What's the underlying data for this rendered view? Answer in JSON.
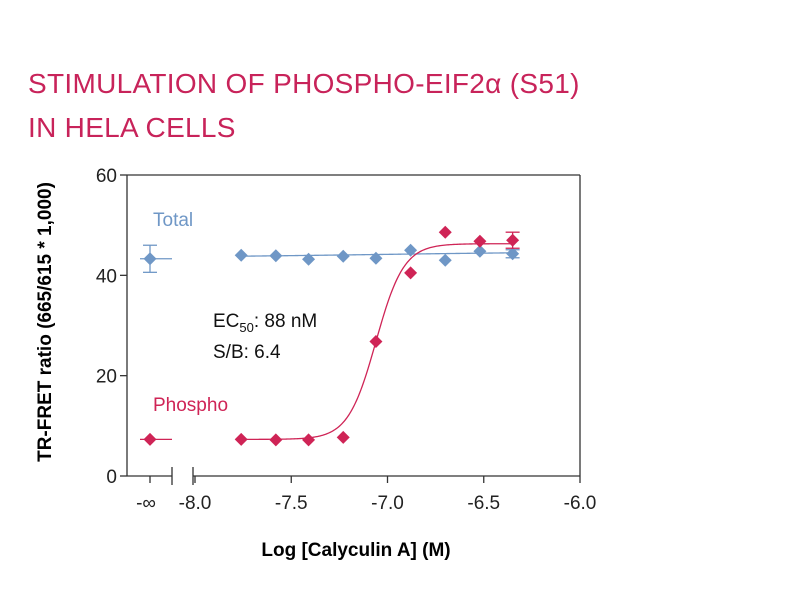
{
  "chart_data": {
    "type": "scatter",
    "title_line1": "STIMULATION OF PHOSPHO-EIF2α (S51)",
    "title_line2": "IN HELA CELLS",
    "xlabel": "Log [Calyculin A] (M)",
    "ylabel": "TR-FRET ratio (665/615 * 1,000)",
    "xlim": [
      -8.0,
      -6.0
    ],
    "ylim": [
      0,
      60
    ],
    "x_ticks": [
      "-8.0",
      "-7.5",
      "-7.0",
      "-6.5",
      "-6.0"
    ],
    "y_ticks": [
      "0",
      "20",
      "40",
      "60"
    ],
    "zero_tick_label": "-∞",
    "grid": false,
    "annotation_ec_prefix": "EC",
    "annotation_ec_sub": "50",
    "annotation_ec_value": ": 88 nM",
    "annotation_sb": "S/B: 6.4",
    "series": [
      {
        "name": "Total",
        "color": "#6f97c6",
        "zero_point": {
          "y": 43.3,
          "err": 2.7
        },
        "points": [
          {
            "x": -7.76,
            "y": 44.0
          },
          {
            "x": -7.58,
            "y": 43.9
          },
          {
            "x": -7.41,
            "y": 43.2
          },
          {
            "x": -7.23,
            "y": 43.8
          },
          {
            "x": -7.06,
            "y": 43.4
          },
          {
            "x": -6.88,
            "y": 45.0
          },
          {
            "x": -6.7,
            "y": 43.0
          },
          {
            "x": -6.52,
            "y": 44.8
          },
          {
            "x": -6.35,
            "y": 44.3,
            "err": 0.8
          }
        ],
        "fit": {
          "bottom": 43.5,
          "top": 44.8,
          "logEC50": -7.06,
          "hill": 0.7
        }
      },
      {
        "name": "Phospho",
        "color": "#cf2456",
        "zero_point": {
          "y": 7.3
        },
        "points": [
          {
            "x": -7.76,
            "y": 7.3
          },
          {
            "x": -7.58,
            "y": 7.2
          },
          {
            "x": -7.41,
            "y": 7.2
          },
          {
            "x": -7.23,
            "y": 7.7
          },
          {
            "x": -7.06,
            "y": 26.8
          },
          {
            "x": -6.88,
            "y": 40.5
          },
          {
            "x": -6.7,
            "y": 48.6
          },
          {
            "x": -6.52,
            "y": 46.8
          },
          {
            "x": -6.35,
            "y": 47.0,
            "err": 1.6
          }
        ],
        "fit": {
          "bottom": 7.3,
          "top": 46.3,
          "logEC50": -7.06,
          "hill": 6
        }
      }
    ]
  }
}
